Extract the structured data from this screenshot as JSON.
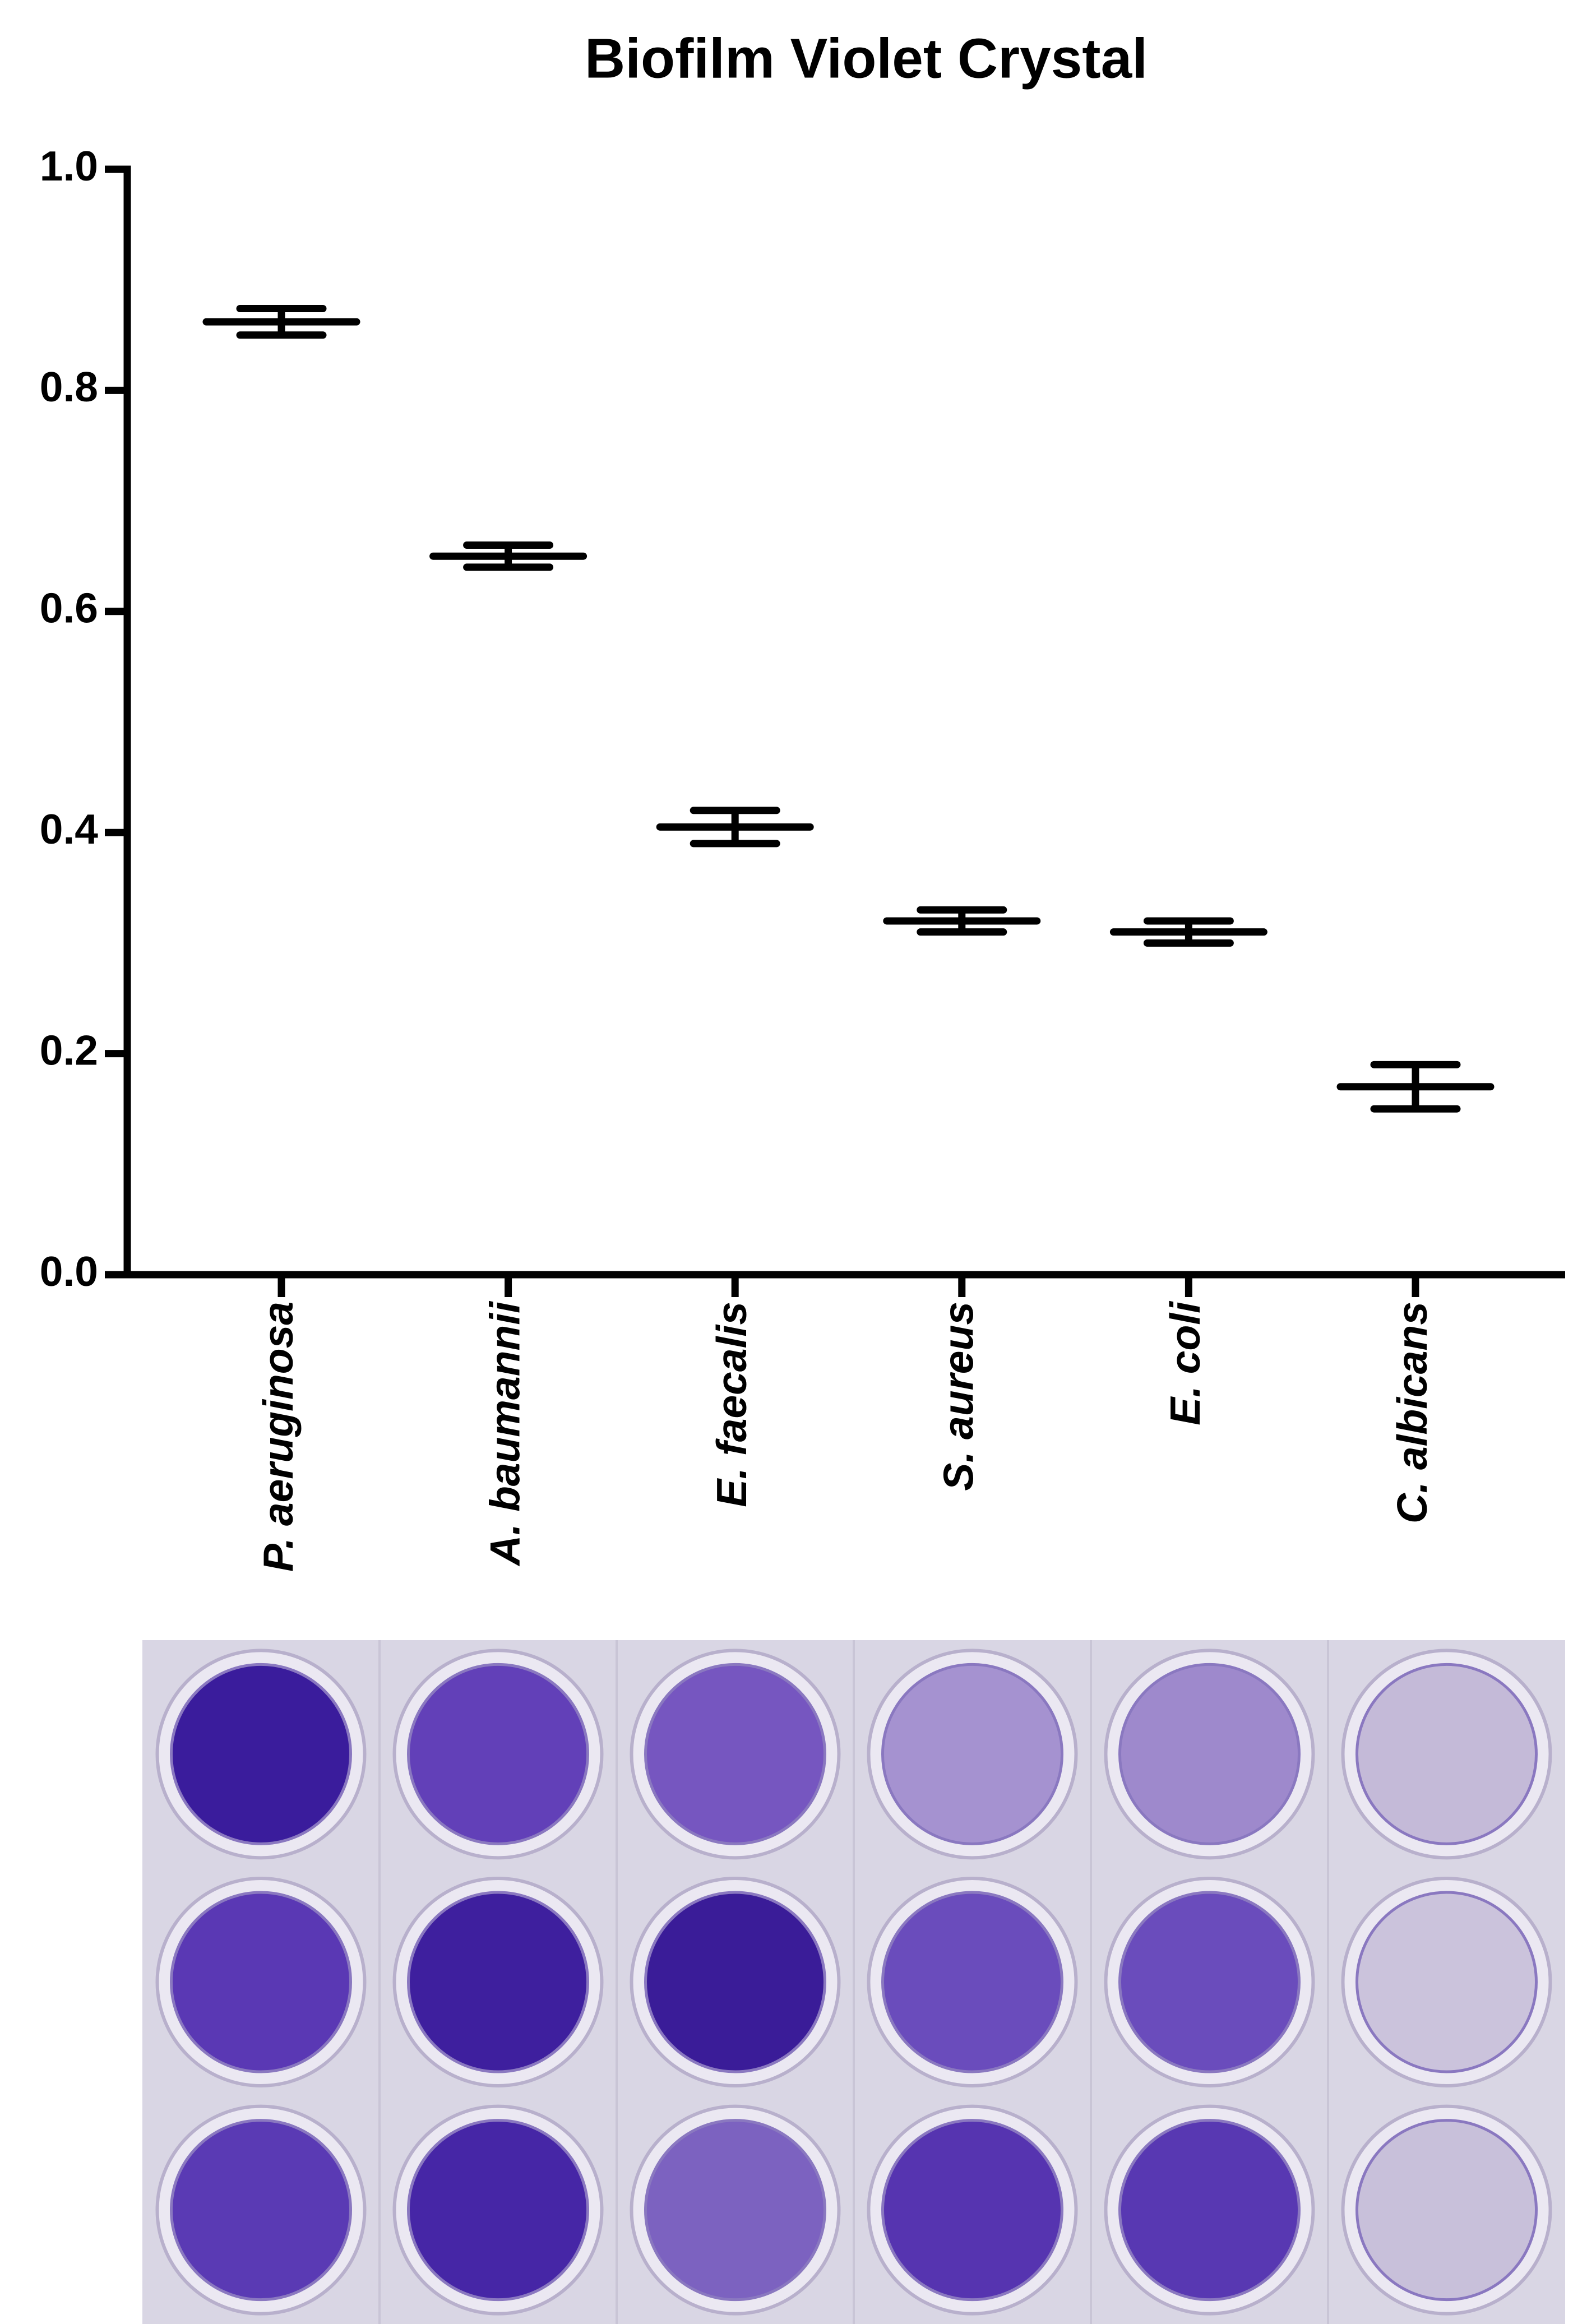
{
  "chart_data": {
    "type": "errorbar",
    "title": "Biofilm Violet Crystal",
    "categories": [
      "P. aeruginosa",
      "A. baumannii",
      "E. faecalis",
      "S. aureus",
      "E. coli",
      "C. albicans"
    ],
    "values": [
      0.862,
      0.65,
      0.405,
      0.32,
      0.31,
      0.17
    ],
    "errors": [
      0.012,
      0.01,
      0.015,
      0.01,
      0.01,
      0.02
    ],
    "color": "#000000",
    "ylim": [
      0,
      1
    ],
    "yticks": [
      {
        "value": 0,
        "label": "0.0"
      },
      0.2,
      0.4,
      0.6,
      0.8,
      {
        "value": 1,
        "label": "1.0"
      }
    ]
  }
}
